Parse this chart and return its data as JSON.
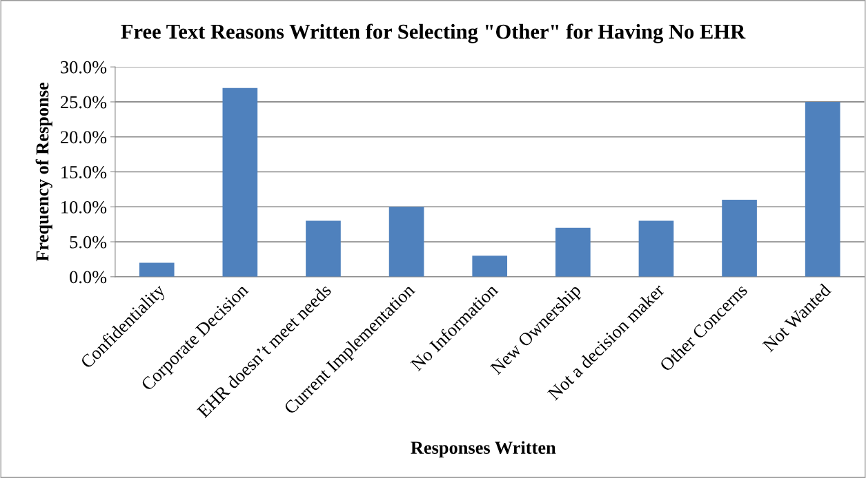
{
  "chart_data": {
    "type": "bar",
    "title": "Free Text Reasons Written for Selecting \"Other\" for Having No EHR",
    "xlabel": "Responses Written",
    "ylabel": "Frequency of Response",
    "categories": [
      "Confidentiality",
      "Corporate Decision",
      "EHR doesn’t meet needs",
      "Current Implementation",
      "No Information",
      "New Ownership",
      "Not a decision maker",
      "Other Concerns",
      "Not Wanted"
    ],
    "values": [
      2,
      27,
      8,
      10,
      3,
      7,
      8,
      11,
      25
    ],
    "color": "#4f81bd",
    "ylim": [
      0,
      30
    ],
    "yticks": [
      {
        "value": 0,
        "label": "0.0%"
      },
      {
        "value": 5,
        "label": "5.0%"
      },
      {
        "value": 10,
        "label": "10.0%"
      },
      {
        "value": 15,
        "label": "15.0%"
      },
      {
        "value": 20,
        "label": "20.0%"
      },
      {
        "value": 25,
        "label": "25.0%"
      },
      {
        "value": 30,
        "label": "30.0%"
      }
    ],
    "grid": "y",
    "legend": false
  }
}
